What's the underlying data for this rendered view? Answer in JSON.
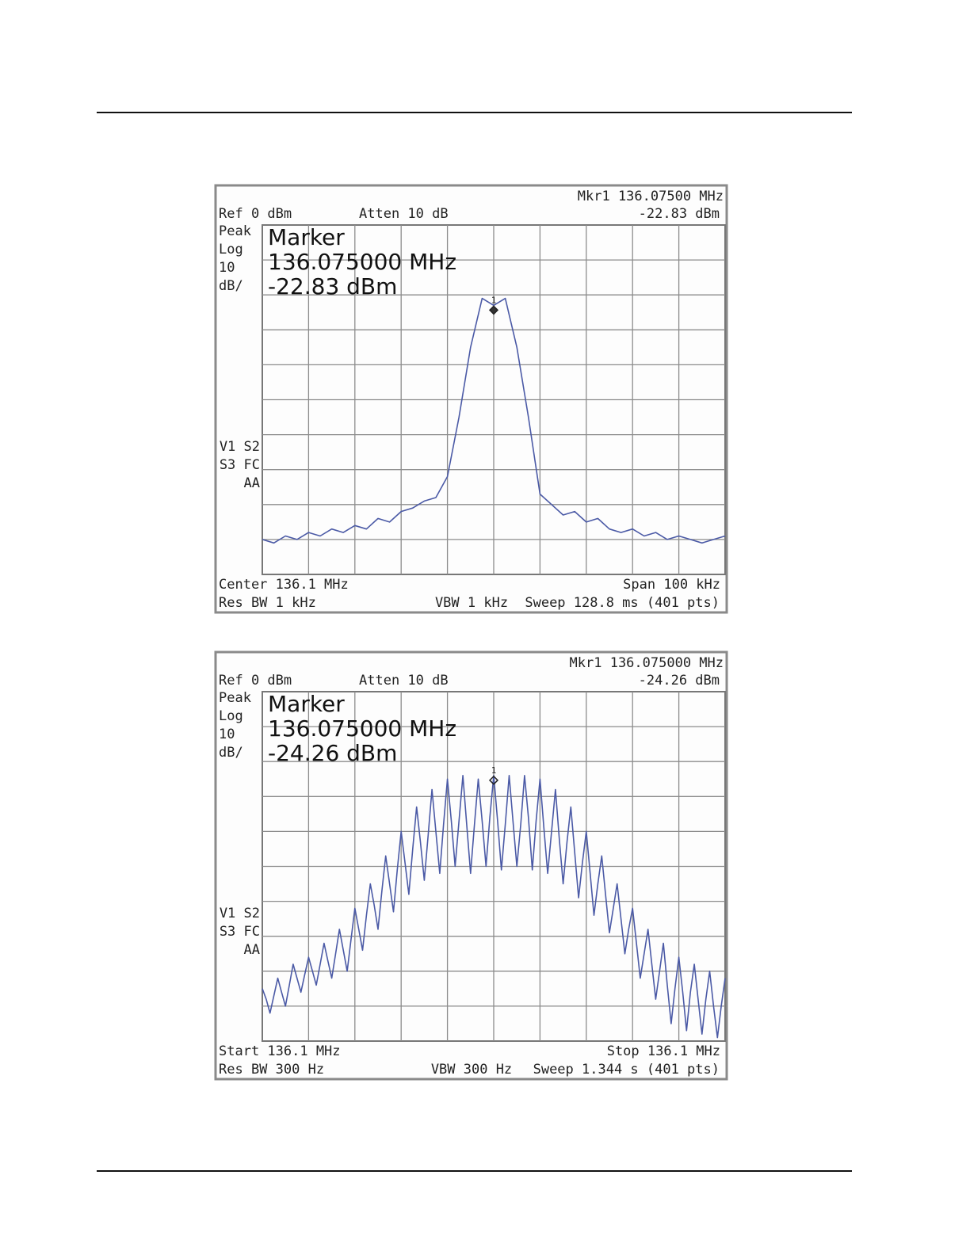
{
  "screens": [
    {
      "header": {
        "marker_readout": "Mkr1  136.07500 MHz",
        "marker_level": "-22.83 dBm",
        "reference": "Ref 0 dBm",
        "attenuation": "Atten 10 dB"
      },
      "left_labels": [
        "Peak",
        "Log",
        "10",
        "dB/"
      ],
      "status_labels": [
        "V1  S2",
        "S3  FC",
        "AA"
      ],
      "marker_box": [
        "Marker",
        "136.075000 MHz",
        "-22.83 dBm"
      ],
      "marker_number": "1",
      "footer": {
        "left_top": "Center 136.1 MHz",
        "right_top": "Span 100 kHz",
        "left_bottom": "Res BW 1 kHz",
        "center_bottom": "VBW 1 kHz",
        "right_bottom": "Sweep 128.8 ms (401 pts)"
      },
      "trace": {
        "color": "#4b5aa6",
        "ylim": [
          -100,
          0
        ],
        "values": [
          -90,
          -91,
          -89,
          -90,
          -88,
          -89,
          -87,
          -88,
          -86,
          -87,
          -84,
          -85,
          -82,
          -81,
          -79,
          -78,
          -72,
          -55,
          -35,
          -21,
          -23,
          -21,
          -35,
          -55,
          -77,
          -80,
          -83,
          -82,
          -85,
          -84,
          -87,
          -88,
          -87,
          -89,
          -88,
          -90,
          -89,
          -90,
          -91,
          -90,
          -89
        ]
      }
    },
    {
      "header": {
        "marker_readout": "Mkr1  136.075000 MHz",
        "marker_level": "-24.26 dBm",
        "reference": "Ref 0 dBm",
        "attenuation": "Atten 10 dB"
      },
      "left_labels": [
        "Peak",
        "Log",
        "10",
        "dB/"
      ],
      "status_labels": [
        "V1  S2",
        "S3  FC",
        "AA"
      ],
      "marker_box": [
        "Marker",
        "136.075000 MHz",
        "-24.26 dBm"
      ],
      "marker_number": "1",
      "footer": {
        "left_top": "Start 136.1 MHz",
        "right_top": "Stop 136.1 MHz",
        "left_bottom": "Res BW 300 Hz",
        "center_bottom": "VBW 300 Hz",
        "right_bottom": "Sweep 1.344 s (401 pts)"
      },
      "trace": {
        "color": "#4b5aa6",
        "ylim": [
          -100,
          0
        ],
        "values": [
          -85,
          -88,
          -92,
          -87,
          -82,
          -86,
          -90,
          -84,
          -78,
          -82,
          -86,
          -81,
          -76,
          -80,
          -84,
          -78,
          -72,
          -77,
          -82,
          -75,
          -68,
          -74,
          -80,
          -71,
          -62,
          -68,
          -74,
          -64,
          -55,
          -61,
          -68,
          -57,
          -47,
          -55,
          -63,
          -51,
          -40,
          -49,
          -58,
          -45,
          -33,
          -43,
          -54,
          -41,
          -28,
          -40,
          -52,
          -38,
          -25,
          -37,
          -50,
          -37,
          -24,
          -38,
          -52,
          -38,
          -25,
          -37,
          -50,
          -36,
          -24,
          -37,
          -51,
          -38,
          -24,
          -37,
          -50,
          -38,
          -24,
          -36,
          -51,
          -37,
          -25,
          -39,
          -52,
          -40,
          -28,
          -42,
          -55,
          -43,
          -33,
          -46,
          -59,
          -49,
          -40,
          -52,
          -64,
          -55,
          -47,
          -58,
          -69,
          -62,
          -55,
          -65,
          -75,
          -68,
          -62,
          -72,
          -82,
          -75,
          -68,
          -78,
          -88,
          -80,
          -72,
          -84,
          -95,
          -85,
          -76,
          -86,
          -97,
          -86,
          -78,
          -88,
          -98,
          -88,
          -80,
          -90,
          -99,
          -90,
          -82
        ]
      }
    }
  ]
}
